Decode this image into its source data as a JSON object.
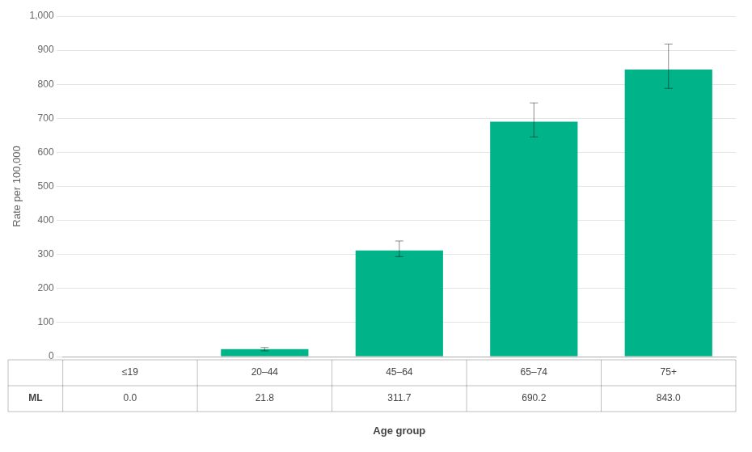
{
  "chart_data": {
    "type": "bar",
    "xlabel": "Age group",
    "ylabel": "Rate per 100,000",
    "categories": [
      "≤19",
      "20–44",
      "45–64",
      "65–74",
      "75+"
    ],
    "series": [
      {
        "name": "ML",
        "color": "#00b388",
        "values": [
          0.0,
          21.8,
          311.7,
          690.2,
          843.0
        ],
        "value_labels": [
          "0.0",
          "21.8",
          "311.7",
          "690.2",
          "843.0"
        ],
        "errors_upper": [
          0.0,
          5.0,
          28.0,
          55.0,
          75.0
        ],
        "errors_lower": [
          0.0,
          5.0,
          18.0,
          45.0,
          55.0
        ]
      }
    ],
    "ylim": [
      0,
      1000
    ],
    "yticks": [
      0,
      100,
      200,
      300,
      400,
      500,
      600,
      700,
      800,
      900,
      {
        "value": 1000,
        "label": "1,000"
      }
    ],
    "grid": true,
    "data_labels": true
  }
}
